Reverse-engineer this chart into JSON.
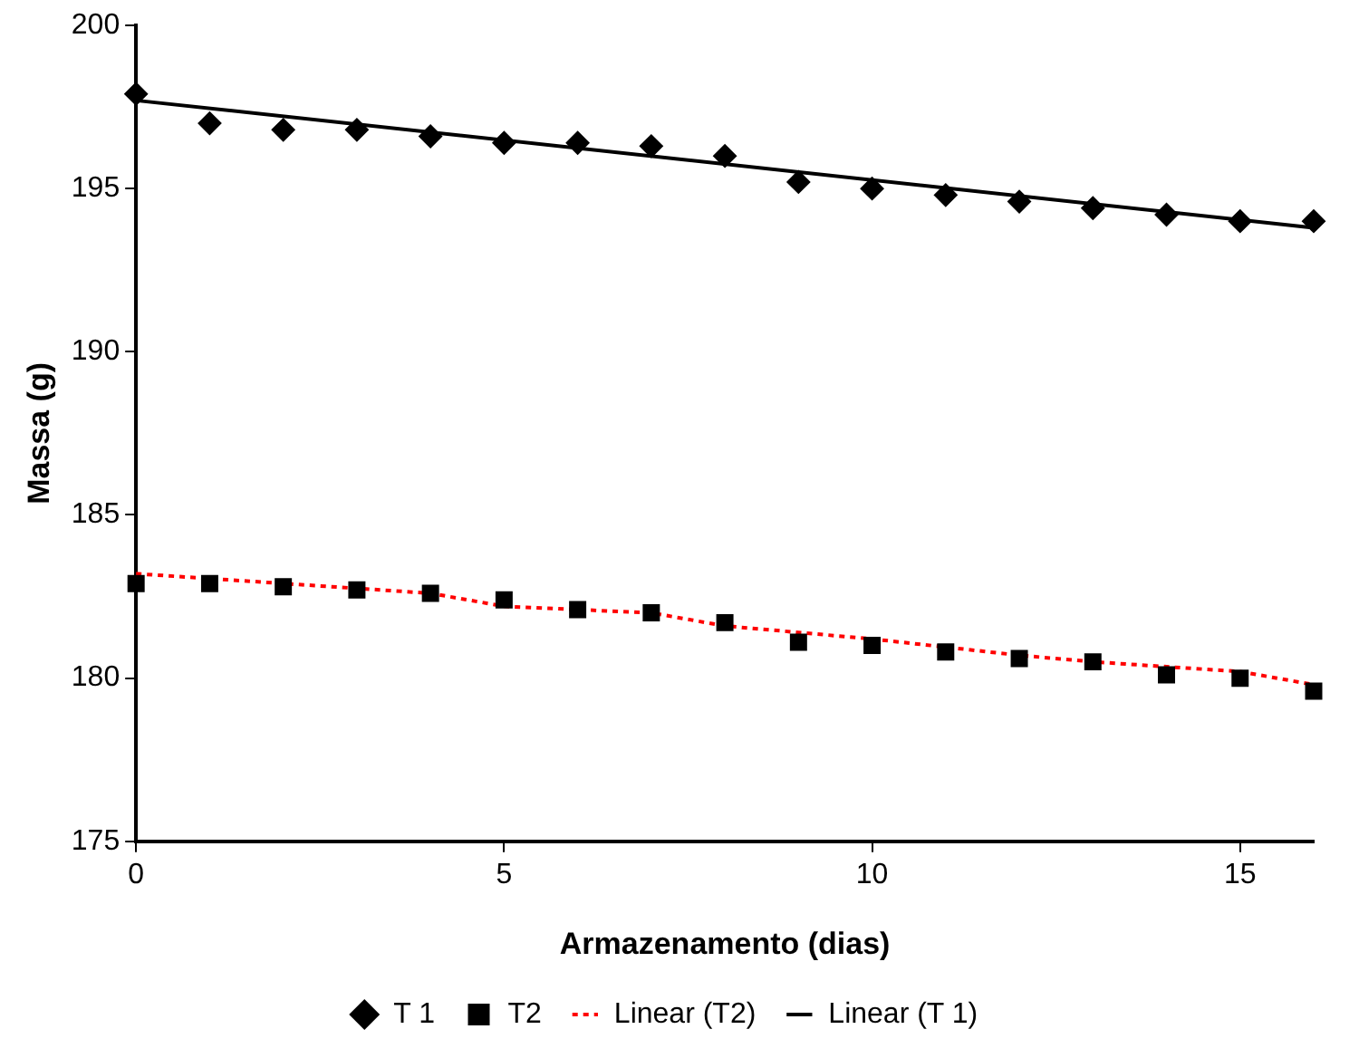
{
  "chart_data": {
    "type": "scatter",
    "xlabel": "Armazenamento (dias)",
    "ylabel": "Massa (g)",
    "x": [
      0,
      1,
      2,
      3,
      4,
      5,
      6,
      7,
      8,
      9,
      10,
      11,
      12,
      13,
      14,
      15,
      16
    ],
    "xlim": [
      0,
      16
    ],
    "xticks": [
      0,
      5,
      10,
      15
    ],
    "ylim": [
      175,
      200
    ],
    "yticks": [
      175,
      180,
      185,
      190,
      195,
      200
    ],
    "grid": false,
    "legend": "bottom",
    "series": [
      {
        "name": "T 1",
        "type": "scatter",
        "marker": "diamond",
        "color": "#000000",
        "values": [
          197.9,
          197.0,
          196.8,
          196.8,
          196.6,
          196.4,
          196.4,
          196.3,
          196.0,
          195.2,
          195.0,
          194.8,
          194.6,
          194.4,
          194.2,
          194.0,
          194.0
        ]
      },
      {
        "name": "T2",
        "type": "scatter",
        "marker": "square",
        "color": "#000000",
        "values": [
          182.9,
          182.9,
          182.8,
          182.7,
          182.6,
          182.4,
          182.1,
          182.0,
          181.7,
          181.1,
          181.0,
          180.8,
          180.6,
          180.5,
          180.1,
          180.0,
          179.6
        ]
      },
      {
        "name": "Linear (T2)",
        "type": "line",
        "marker": "none",
        "line_style": "dotted",
        "color": "#ff0000",
        "x": [
          0,
          4,
          5,
          7,
          8,
          10,
          12,
          13,
          15,
          16
        ],
        "values": [
          183.2,
          182.6,
          182.2,
          182.0,
          181.6,
          181.2,
          180.7,
          180.5,
          180.2,
          179.8
        ]
      },
      {
        "name": "Linear (T 1)",
        "type": "line",
        "marker": "none",
        "line_style": "solid",
        "color": "#000000",
        "x": [
          0,
          16
        ],
        "values": [
          197.7,
          193.8
        ]
      }
    ]
  }
}
